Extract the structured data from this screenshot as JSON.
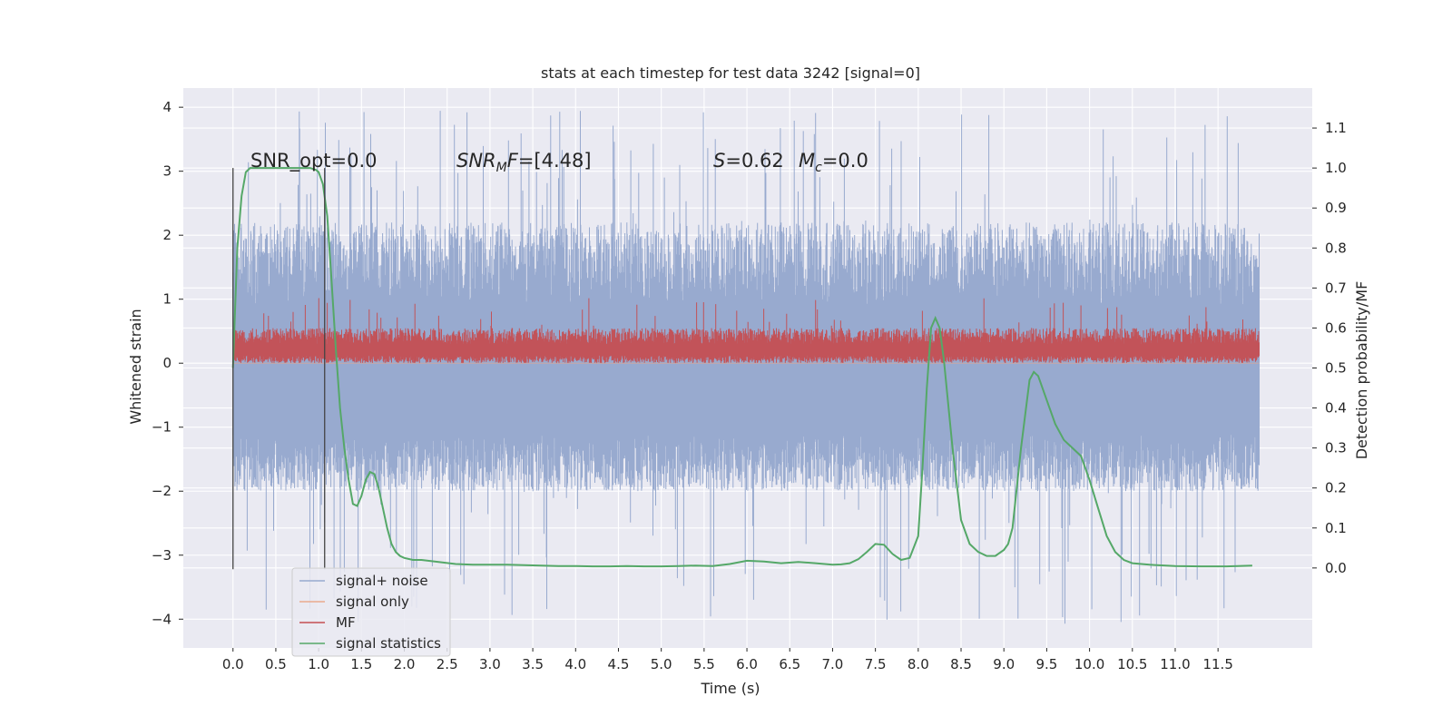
{
  "chart_data": {
    "type": "line",
    "title": "stats at each timestep for test data 3242 [signal=0]",
    "xlabel": "Time (s)",
    "ylabel_left": "Whitened strain",
    "ylabel_right": "Detection probability/MF",
    "xlim": [
      -0.58,
      12.6
    ],
    "ylim_left": [
      -4.45,
      4.3
    ],
    "ylim_right": [
      -0.2,
      1.2
    ],
    "x_ticks": [
      "0.0",
      "0.5",
      "1.0",
      "1.5",
      "2.0",
      "2.5",
      "3.0",
      "3.5",
      "4.0",
      "4.5",
      "5.0",
      "5.5",
      "6.0",
      "6.5",
      "7.0",
      "7.5",
      "8.0",
      "8.5",
      "9.0",
      "9.5",
      "10.0",
      "10.5",
      "11.0",
      "11.5"
    ],
    "y_ticks_left": [
      "−4",
      "−3",
      "−2",
      "−1",
      "0",
      "1",
      "2",
      "3",
      "4"
    ],
    "y_ticks_right": [
      "0.0",
      "0.1",
      "0.2",
      "0.3",
      "0.4",
      "0.5",
      "0.6",
      "0.7",
      "0.8",
      "0.9",
      "1.0",
      "1.1"
    ],
    "grid": true,
    "legend_position": "lower-left",
    "annotations": {
      "snr_opt": "SNR_opt=0.0",
      "snr_mf": "=[4.48]",
      "s": "=0.62",
      "mc": "=0.0"
    },
    "vlines_x": [
      0.0,
      1.07
    ],
    "series": [
      {
        "name": "signal+ noise",
        "color": "#98aacf",
        "axis": "left",
        "kind": "noise",
        "x_range": [
          0.0,
          11.98
        ],
        "envelope": [
          -1.6,
          1.5
        ],
        "peak_range": [
          -4.1,
          3.95
        ]
      },
      {
        "name": "signal only",
        "color": "#e9a98c",
        "axis": "left",
        "kind": "flat",
        "values": []
      },
      {
        "name": "MF",
        "color": "#c44e52",
        "axis": "left",
        "kind": "noise",
        "x_range": [
          0.0,
          11.98
        ],
        "envelope": [
          0.0,
          0.55
        ],
        "peak_range": [
          0.0,
          1.02
        ]
      },
      {
        "name": "signal statistics",
        "color": "#55a868",
        "axis": "right",
        "x": [
          0.0,
          0.05,
          0.1,
          0.15,
          0.2,
          0.3,
          0.5,
          0.7,
          0.9,
          0.97,
          1.0,
          1.05,
          1.1,
          1.15,
          1.2,
          1.25,
          1.3,
          1.35,
          1.4,
          1.45,
          1.5,
          1.55,
          1.6,
          1.65,
          1.7,
          1.75,
          1.8,
          1.85,
          1.9,
          1.95,
          2.0,
          2.1,
          2.2,
          2.4,
          2.6,
          2.8,
          3.0,
          3.2,
          3.4,
          3.6,
          3.8,
          4.0,
          4.2,
          4.4,
          4.6,
          4.8,
          5.0,
          5.2,
          5.4,
          5.6,
          5.8,
          6.0,
          6.2,
          6.4,
          6.6,
          6.8,
          7.0,
          7.1,
          7.2,
          7.3,
          7.4,
          7.5,
          7.6,
          7.7,
          7.8,
          7.9,
          8.0,
          8.05,
          8.1,
          8.15,
          8.2,
          8.25,
          8.3,
          8.4,
          8.5,
          8.6,
          8.7,
          8.8,
          8.9,
          9.0,
          9.05,
          9.1,
          9.2,
          9.3,
          9.35,
          9.4,
          9.5,
          9.6,
          9.7,
          9.8,
          9.9,
          10.0,
          10.1,
          10.2,
          10.3,
          10.4,
          10.5,
          10.7,
          11.0,
          11.3,
          11.6,
          11.9
        ],
        "y": [
          0.5,
          0.8,
          0.93,
          0.99,
          1.0,
          1.0,
          1.0,
          1.0,
          1.0,
          0.995,
          0.99,
          0.96,
          0.88,
          0.72,
          0.55,
          0.4,
          0.3,
          0.22,
          0.16,
          0.155,
          0.18,
          0.22,
          0.24,
          0.235,
          0.2,
          0.15,
          0.1,
          0.06,
          0.04,
          0.03,
          0.025,
          0.02,
          0.02,
          0.015,
          0.01,
          0.008,
          0.008,
          0.008,
          0.007,
          0.006,
          0.005,
          0.005,
          0.004,
          0.004,
          0.005,
          0.004,
          0.004,
          0.005,
          0.006,
          0.005,
          0.01,
          0.018,
          0.016,
          0.012,
          0.015,
          0.012,
          0.008,
          0.009,
          0.012,
          0.022,
          0.04,
          0.06,
          0.058,
          0.035,
          0.02,
          0.025,
          0.08,
          0.25,
          0.45,
          0.6,
          0.625,
          0.6,
          0.52,
          0.3,
          0.12,
          0.06,
          0.04,
          0.03,
          0.03,
          0.045,
          0.06,
          0.1,
          0.3,
          0.47,
          0.49,
          0.48,
          0.42,
          0.36,
          0.32,
          0.3,
          0.28,
          0.22,
          0.15,
          0.08,
          0.04,
          0.02,
          0.012,
          0.008,
          0.005,
          0.004,
          0.004,
          0.006
        ]
      }
    ]
  }
}
